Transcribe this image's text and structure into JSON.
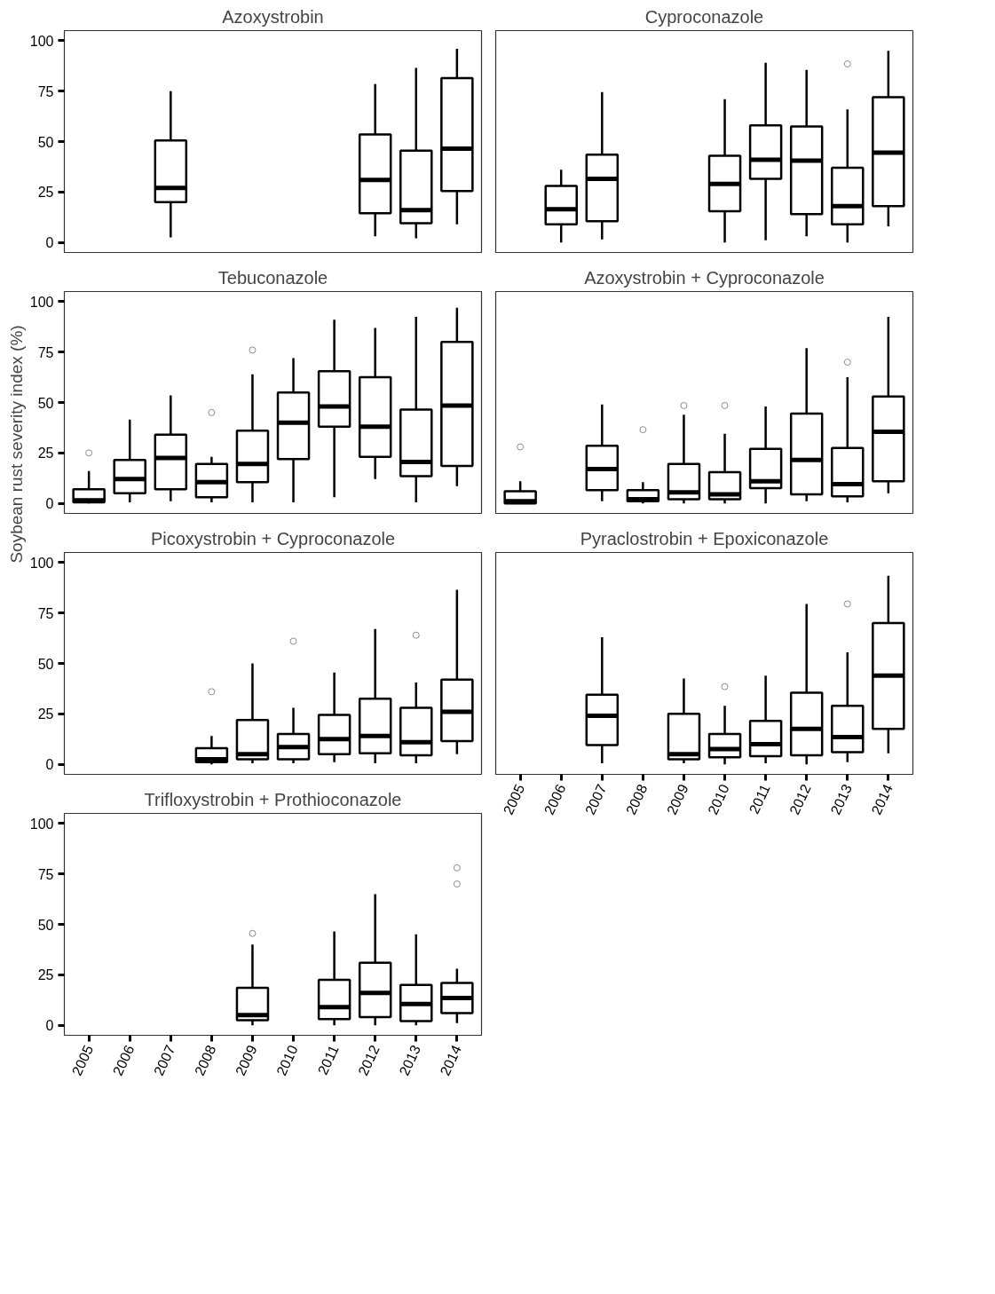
{
  "chart_data": [
    {
      "type": "box",
      "title": "Azoxystrobin",
      "ylabel": "Soybean rust severity index (%)",
      "tick_labels": "y",
      "categories": [
        "2005",
        "2006",
        "2007",
        "2008",
        "2009",
        "2010",
        "2011",
        "2012",
        "2013",
        "2014"
      ],
      "ylim": [
        -5,
        105
      ],
      "yticks": [
        0,
        25,
        50,
        75,
        100
      ],
      "color": "#000000",
      "boxes": [
        null,
        null,
        {
          "low": 2.5,
          "q1": 20,
          "median": 27,
          "q3": 50.5,
          "high": 75
        },
        null,
        null,
        null,
        null,
        {
          "low": 3,
          "q1": 14.5,
          "median": 31,
          "q3": 53.5,
          "high": 78.5
        },
        {
          "low": 2,
          "q1": 9.5,
          "median": 16,
          "q3": 45.5,
          "high": 86.5
        },
        {
          "low": 9,
          "q1": 25.5,
          "median": 46.5,
          "q3": 81.5,
          "high": 96
        }
      ]
    },
    {
      "type": "box",
      "title": "Cyproconazole",
      "tick_labels": false,
      "categories": [
        "2005",
        "2006",
        "2007",
        "2008",
        "2009",
        "2010",
        "2011",
        "2012",
        "2013",
        "2014"
      ],
      "ylim": [
        -5,
        105
      ],
      "yticks": [
        0,
        25,
        50,
        75,
        100
      ],
      "color": "#000000",
      "boxes": [
        null,
        {
          "low": 0,
          "q1": 9,
          "median": 16.5,
          "q3": 28,
          "high": 36
        },
        {
          "low": 1.5,
          "q1": 10.5,
          "median": 31.5,
          "q3": 43.5,
          "high": 74.5
        },
        null,
        null,
        {
          "low": 0,
          "q1": 15.5,
          "median": 29,
          "q3": 43,
          "high": 71
        },
        {
          "low": 1,
          "q1": 31.5,
          "median": 41,
          "q3": 58,
          "high": 89
        },
        {
          "low": 3,
          "q1": 14,
          "median": 40.5,
          "q3": 57.5,
          "high": 85.5
        },
        {
          "low": 0,
          "q1": 9,
          "median": 18,
          "q3": 37,
          "high": 66,
          "outliers": [
            88.5
          ]
        },
        {
          "low": 8,
          "q1": 18,
          "median": 44.5,
          "q3": 72,
          "high": 95
        }
      ]
    },
    {
      "type": "box",
      "title": "Tebuconazole",
      "tick_labels": "y",
      "categories": [
        "2005",
        "2006",
        "2007",
        "2008",
        "2009",
        "2010",
        "2011",
        "2012",
        "2013",
        "2014"
      ],
      "ylim": [
        -5,
        105
      ],
      "yticks": [
        0,
        25,
        50,
        75,
        100
      ],
      "color": "#000000",
      "boxes": [
        {
          "low": 0,
          "q1": 0.5,
          "median": 1.5,
          "q3": 7,
          "high": 16,
          "outliers": [
            25
          ]
        },
        {
          "low": 0.5,
          "q1": 5,
          "median": 12,
          "q3": 21.5,
          "high": 41.5
        },
        {
          "low": 1,
          "q1": 7,
          "median": 22.5,
          "q3": 34,
          "high": 53.5
        },
        {
          "low": 0.5,
          "q1": 3,
          "median": 10.5,
          "q3": 19.5,
          "high": 23,
          "outliers": [
            45
          ]
        },
        {
          "low": 0.5,
          "q1": 10.5,
          "median": 19.5,
          "q3": 36,
          "high": 64,
          "outliers": [
            76
          ]
        },
        {
          "low": 0.5,
          "q1": 22,
          "median": 40,
          "q3": 55,
          "high": 72
        },
        {
          "low": 3,
          "q1": 38,
          "median": 48,
          "q3": 65.5,
          "high": 91
        },
        {
          "low": 12,
          "q1": 23,
          "median": 38,
          "q3": 62.5,
          "high": 87
        },
        {
          "low": 0.5,
          "q1": 13.5,
          "median": 20.5,
          "q3": 46.5,
          "high": 92.5
        },
        {
          "low": 8.5,
          "q1": 18.5,
          "median": 48.5,
          "q3": 80,
          "high": 97
        }
      ]
    },
    {
      "type": "box",
      "title": "Azoxystrobin + Cyproconazole",
      "tick_labels": false,
      "categories": [
        "2005",
        "2006",
        "2007",
        "2008",
        "2009",
        "2010",
        "2011",
        "2012",
        "2013",
        "2014"
      ],
      "ylim": [
        -5,
        105
      ],
      "yticks": [
        0,
        25,
        50,
        75,
        100
      ],
      "color": "#000000",
      "boxes": [
        {
          "low": 0,
          "q1": 0,
          "median": 1,
          "q3": 6,
          "high": 11,
          "outliers": [
            28
          ]
        },
        null,
        {
          "low": 1,
          "q1": 6.5,
          "median": 17,
          "q3": 28.5,
          "high": 49
        },
        {
          "low": 0,
          "q1": 1,
          "median": 2,
          "q3": 6.5,
          "high": 10.5,
          "outliers": [
            36.5
          ]
        },
        {
          "low": 0,
          "q1": 2,
          "median": 5.5,
          "q3": 19.5,
          "high": 44,
          "outliers": [
            48.5
          ]
        },
        {
          "low": 0,
          "q1": 2,
          "median": 4.5,
          "q3": 15.5,
          "high": 34.5,
          "outliers": [
            48.5
          ]
        },
        {
          "low": 0,
          "q1": 7.5,
          "median": 11,
          "q3": 27,
          "high": 48
        },
        {
          "low": 1,
          "q1": 4.5,
          "median": 21.5,
          "q3": 44.5,
          "high": 77
        },
        {
          "low": 0.5,
          "q1": 3.5,
          "median": 9.5,
          "q3": 27.5,
          "high": 62.5,
          "outliers": [
            70
          ]
        },
        {
          "low": 5,
          "q1": 11,
          "median": 35.5,
          "q3": 53,
          "high": 92.5
        }
      ]
    },
    {
      "type": "box",
      "title": "Picoxystrobin + Cyproconazole",
      "tick_labels": "y",
      "categories": [
        "2005",
        "2006",
        "2007",
        "2008",
        "2009",
        "2010",
        "2011",
        "2012",
        "2013",
        "2014"
      ],
      "ylim": [
        -5,
        105
      ],
      "yticks": [
        0,
        25,
        50,
        75,
        100
      ],
      "color": "#000000",
      "boxes": [
        null,
        null,
        null,
        {
          "low": 0,
          "q1": 1,
          "median": 2.5,
          "q3": 8,
          "high": 14,
          "outliers": [
            36
          ]
        },
        {
          "low": 0.5,
          "q1": 2.5,
          "median": 5,
          "q3": 22,
          "high": 50
        },
        {
          "low": 0.5,
          "q1": 2.5,
          "median": 8.5,
          "q3": 15,
          "high": 28,
          "outliers": [
            61
          ]
        },
        {
          "low": 1,
          "q1": 5,
          "median": 12.5,
          "q3": 24.5,
          "high": 45.5
        },
        {
          "low": 0.5,
          "q1": 5.5,
          "median": 14,
          "q3": 32.5,
          "high": 67
        },
        {
          "low": 0.5,
          "q1": 4.5,
          "median": 11,
          "q3": 28,
          "high": 40.5,
          "outliers": [
            64
          ]
        },
        {
          "low": 5,
          "q1": 11.5,
          "median": 26,
          "q3": 42,
          "high": 86.5
        }
      ]
    },
    {
      "type": "box",
      "title": "Pyraclostrobin + Epoxiconazole",
      "tick_labels": "x",
      "categories": [
        "2005",
        "2006",
        "2007",
        "2008",
        "2009",
        "2010",
        "2011",
        "2012",
        "2013",
        "2014"
      ],
      "ylim": [
        -5,
        105
      ],
      "yticks": [
        0,
        25,
        50,
        75,
        100
      ],
      "color": "#000000",
      "boxes": [
        null,
        null,
        {
          "low": 0.5,
          "q1": 9.5,
          "median": 24,
          "q3": 34.5,
          "high": 63
        },
        null,
        {
          "low": 0.5,
          "q1": 2.5,
          "median": 5,
          "q3": 25,
          "high": 42.5
        },
        {
          "low": 0,
          "q1": 3.5,
          "median": 7.5,
          "q3": 15,
          "high": 29,
          "outliers": [
            38.5
          ]
        },
        {
          "low": 0.5,
          "q1": 4,
          "median": 10,
          "q3": 21.5,
          "high": 44
        },
        {
          "low": 0,
          "q1": 4.5,
          "median": 17.5,
          "q3": 35.5,
          "high": 79.5
        },
        {
          "low": 1,
          "q1": 6,
          "median": 13.5,
          "q3": 29,
          "high": 55.5,
          "outliers": [
            79.5
          ]
        },
        {
          "low": 5.5,
          "q1": 17.5,
          "median": 44,
          "q3": 70,
          "high": 93.5
        }
      ]
    },
    {
      "type": "box",
      "title": "Trifloxystrobin + Prothioconazole",
      "categories": [
        "2005",
        "2006",
        "2007",
        "2008",
        "2009",
        "2010",
        "2011",
        "2012",
        "2013",
        "2014"
      ],
      "ylim": [
        -5,
        105
      ],
      "yticks": [
        0,
        25,
        50,
        75,
        100
      ],
      "color": "#000000",
      "boxes": [
        null,
        null,
        null,
        null,
        {
          "low": 0,
          "q1": 2.5,
          "median": 5,
          "q3": 18.5,
          "high": 40,
          "outliers": [
            45.5
          ]
        },
        null,
        {
          "low": 0,
          "q1": 3,
          "median": 9,
          "q3": 22.5,
          "high": 46.5
        },
        {
          "low": 0,
          "q1": 4,
          "median": 16,
          "q3": 31,
          "high": 65
        },
        {
          "low": 0,
          "q1": 2,
          "median": 10.5,
          "q3": 20,
          "high": 45
        },
        {
          "low": 1,
          "q1": 6,
          "median": 13.5,
          "q3": 21,
          "high": 28,
          "outliers": [
            70,
            78
          ]
        }
      ]
    }
  ]
}
